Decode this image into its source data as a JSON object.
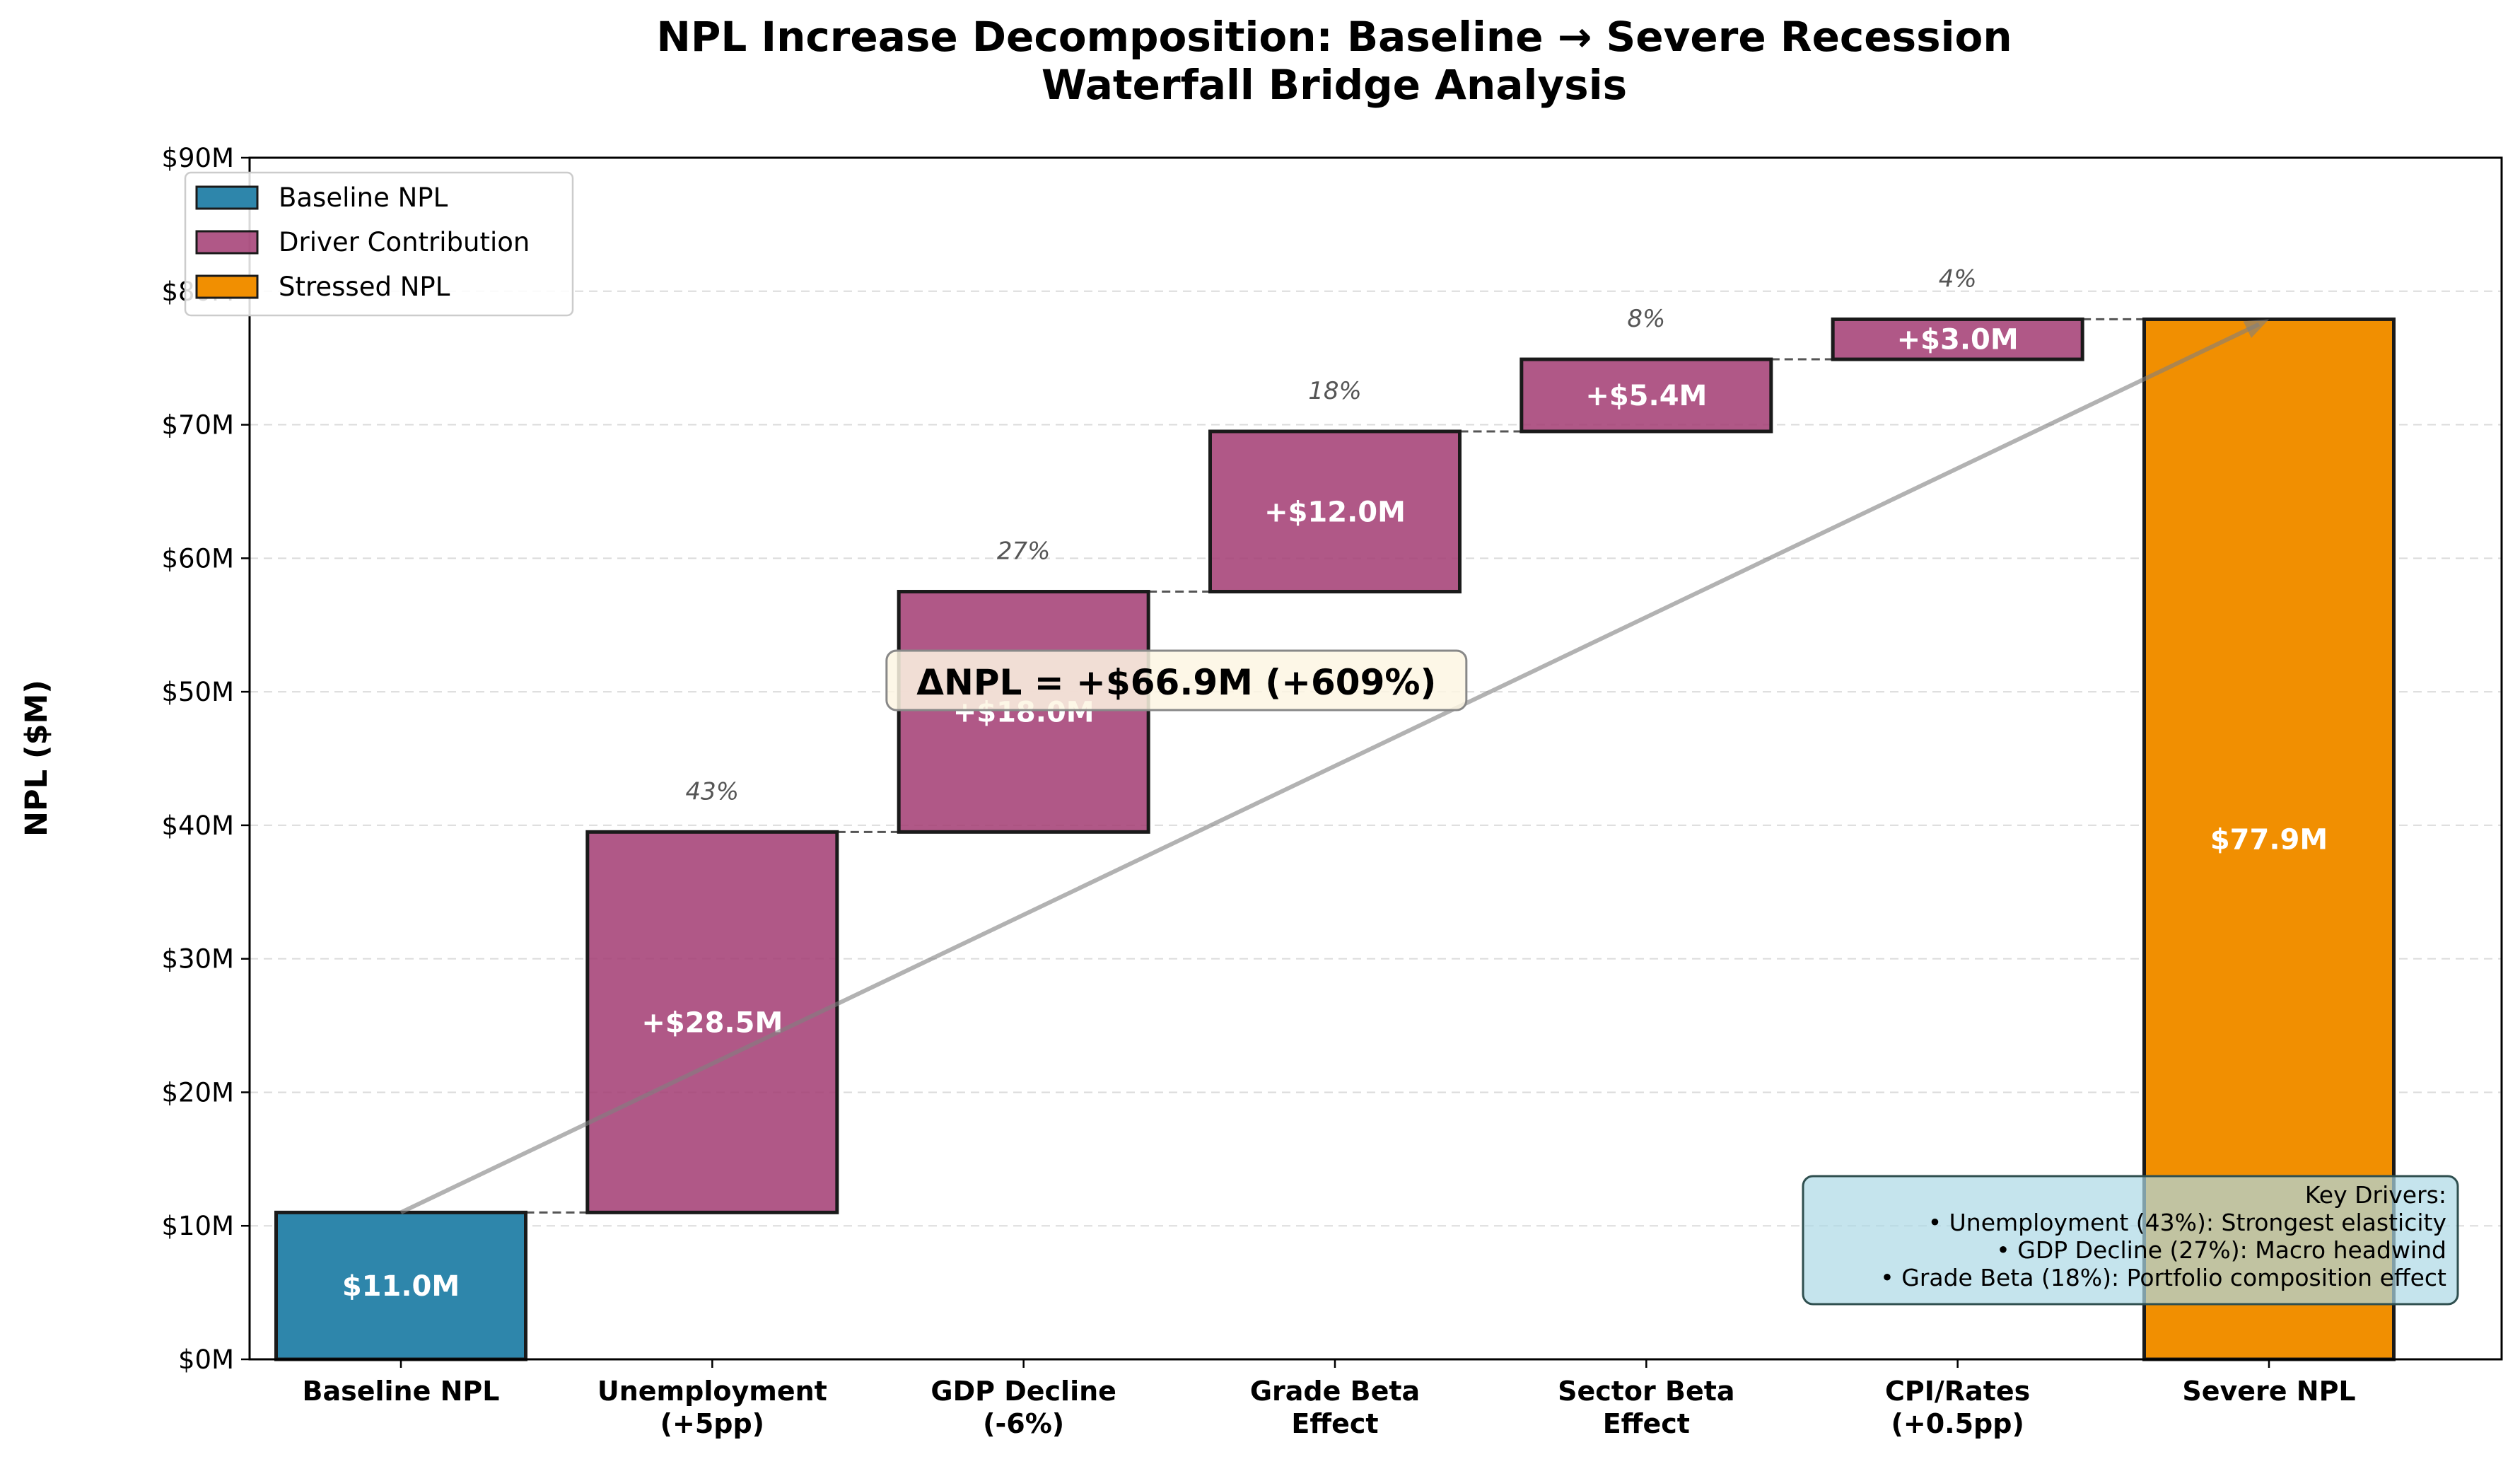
{
  "chart_data": {
    "type": "bar",
    "subtype": "waterfall",
    "title_line1": "NPL Increase Decomposition: Baseline → Severe Recession",
    "title_line2": "Waterfall Bridge Analysis",
    "ylabel": "NPL ($M)",
    "ylim": [
      0,
      90
    ],
    "yticks": [
      0,
      10,
      20,
      30,
      40,
      50,
      60,
      70,
      80,
      90
    ],
    "ytick_labels": [
      "$0M",
      "$10M",
      "$20M",
      "$30M",
      "$40M",
      "$50M",
      "$60M",
      "$70M",
      "$80M",
      "$90M"
    ],
    "grid": "horizontal dashed",
    "legend_position": "top-left",
    "legend": [
      {
        "label": "Baseline NPL",
        "color": "#2e86ab"
      },
      {
        "label": "Driver Contribution",
        "color": "#a23b72"
      },
      {
        "label": "Stressed NPL",
        "color": "#f18f01"
      }
    ],
    "bars": [
      {
        "category": [
          "Baseline NPL"
        ],
        "kind": "total",
        "bottom": 0,
        "top": 11.0,
        "value": 11.0,
        "label": "$11.0M",
        "pct": "",
        "color": "#2e86ab"
      },
      {
        "category": [
          "Unemployment",
          "(+5pp)"
        ],
        "kind": "delta",
        "bottom": 11.0,
        "top": 39.5,
        "value": 28.5,
        "label": "+$28.5M",
        "pct": "43%",
        "color": "#a23b72"
      },
      {
        "category": [
          "GDP Decline",
          "(-6%)"
        ],
        "kind": "delta",
        "bottom": 39.5,
        "top": 57.5,
        "value": 18.0,
        "label": "+$18.0M",
        "pct": "27%",
        "color": "#a23b72"
      },
      {
        "category": [
          "Grade Beta",
          "Effect"
        ],
        "kind": "delta",
        "bottom": 57.5,
        "top": 69.5,
        "value": 12.0,
        "label": "+$12.0M",
        "pct": "18%",
        "color": "#a23b72"
      },
      {
        "category": [
          "Sector Beta",
          "Effect"
        ],
        "kind": "delta",
        "bottom": 69.5,
        "top": 74.9,
        "value": 5.4,
        "label": "+$5.4M",
        "pct": "8%",
        "color": "#a23b72"
      },
      {
        "category": [
          "CPI/Rates",
          "(+0.5pp)"
        ],
        "kind": "delta",
        "bottom": 74.9,
        "top": 77.9,
        "value": 3.0,
        "label": "+$3.0M",
        "pct": "4%",
        "color": "#a23b72"
      },
      {
        "category": [
          "Severe NPL"
        ],
        "kind": "total",
        "bottom": 0,
        "top": 77.9,
        "value": 77.9,
        "label": "$77.9M",
        "pct": "",
        "color": "#f18f01"
      }
    ],
    "annotation": {
      "text": "ΔNPL = +$66.9M (+609%)",
      "arrow_from": {
        "bar": 0,
        "y": 11.0
      },
      "arrow_to": {
        "bar": 6,
        "y": 77.9
      },
      "box_color": "#fdf6e3"
    },
    "drivers_box": {
      "lines": [
        "Key Drivers:",
        "• Unemployment (43%): Strongest elasticity",
        "• GDP Decline (27%): Macro headwind",
        "• Grade Beta (18%): Portfolio composition effect"
      ],
      "box_color": "#add8e6"
    }
  }
}
